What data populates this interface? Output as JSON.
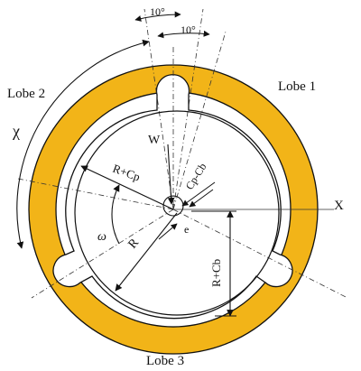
{
  "colors": {
    "ring": "#f2b418",
    "stroke": "#111111",
    "background": "#ffffff"
  },
  "labels": {
    "lobe1": "Lobe 1",
    "lobe2": "Lobe 2",
    "lobe3": "Lobe 3",
    "chi": "χ",
    "omega": "ω",
    "w": "W",
    "x": "X",
    "e": "e",
    "r": "R",
    "r_plus_cp": "R+Cp",
    "r_plus_cb": "R+Cb",
    "cp_minus_cb": "Cp-Cb",
    "angle_left": "10°",
    "angle_right": "10°"
  }
}
